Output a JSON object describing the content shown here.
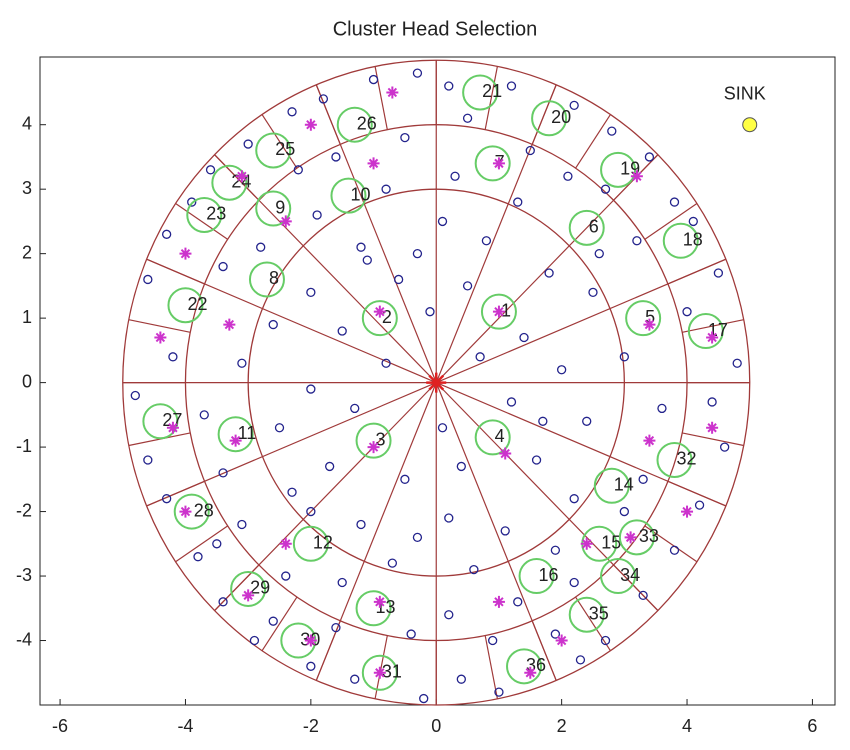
{
  "chart_data": {
    "type": "scatter",
    "title": "Cluster Head Selection",
    "xlim": [
      -6.32,
      6.36
    ],
    "ylim": [
      -5.0,
      5.05
    ],
    "xticks": [
      -6,
      -4,
      -2,
      0,
      2,
      4,
      6
    ],
    "yticks": [
      -4,
      -3,
      -2,
      -1,
      0,
      1,
      2,
      3,
      4
    ],
    "rings": [
      3,
      4,
      5
    ],
    "inner_sectors": 16,
    "outer_sectors": 32,
    "ring_color": "#a03a3a",
    "nodes": {
      "color": "#23238c",
      "x": [
        -0.3,
        0.2,
        -1.0,
        1.2,
        2.2,
        -1.8,
        -2.3,
        2.8,
        -3.0,
        3.4,
        -3.6,
        0.5,
        -0.5,
        1.5,
        -1.6,
        2.1,
        -2.2,
        3.8,
        -3.9,
        4.1,
        -4.3,
        0.3,
        -0.8,
        1.3,
        -1.9,
        2.6,
        -2.8,
        3.2,
        -3.4,
        4.5,
        -4.6,
        0.1,
        -0.3,
        0.8,
        -1.2,
        1.8,
        -2.0,
        2.5,
        -2.6,
        3.0,
        -3.1,
        4.0,
        -4.2,
        4.8,
        -4.8,
        0.5,
        -0.6,
        1.4,
        -1.5,
        2.0,
        -2.0,
        0.7,
        -0.8,
        1.2,
        -1.3,
        2.4,
        -2.5,
        3.6,
        -3.7,
        4.6,
        -4.6,
        0.4,
        -0.5,
        1.6,
        -1.7,
        2.2,
        -2.3,
        3.3,
        -3.4,
        4.2,
        -4.3,
        0.2,
        -0.3,
        1.1,
        -1.2,
        1.9,
        -2.0,
        3.0,
        -3.1,
        3.8,
        -3.8,
        0.6,
        -0.7,
        1.3,
        -1.5,
        2.2,
        -2.4,
        3.3,
        -3.4,
        0.2,
        -0.4,
        0.9,
        -1.6,
        1.9,
        -2.6,
        2.7,
        -2.9,
        0.4,
        -0.2,
        1.0,
        -1.3,
        2.3,
        -2.0,
        -0.1,
        0.1,
        2.7,
        -3.5,
        4.4,
        -1.1,
        1.7
      ],
      "y": [
        4.8,
        4.6,
        4.7,
        4.6,
        4.3,
        4.4,
        4.2,
        3.9,
        3.7,
        3.5,
        3.3,
        4.1,
        3.8,
        3.6,
        3.5,
        3.2,
        3.3,
        2.8,
        2.8,
        2.5,
        2.3,
        3.2,
        3.0,
        2.8,
        2.6,
        2.0,
        2.1,
        2.2,
        1.8,
        1.7,
        1.6,
        2.5,
        2.0,
        2.2,
        2.1,
        1.7,
        1.4,
        1.4,
        0.9,
        0.4,
        0.3,
        1.1,
        0.4,
        0.3,
        -0.2,
        1.5,
        1.6,
        0.7,
        0.8,
        0.2,
        -0.1,
        0.4,
        0.3,
        -0.3,
        -0.4,
        -0.6,
        -0.7,
        -0.4,
        -0.5,
        -1.0,
        -1.2,
        -1.3,
        -1.5,
        -1.2,
        -1.3,
        -1.8,
        -1.7,
        -1.5,
        -1.4,
        -1.9,
        -1.8,
        -2.1,
        -2.4,
        -2.3,
        -2.2,
        -2.6,
        -2.0,
        -2.0,
        -2.2,
        -2.6,
        -2.7,
        -2.9,
        -2.8,
        -3.4,
        -3.1,
        -3.1,
        -3.0,
        -3.3,
        -3.4,
        -3.6,
        -3.9,
        -4.0,
        -3.8,
        -3.9,
        -3.7,
        -4.0,
        -4.0,
        -4.6,
        -4.9,
        -4.8,
        -4.6,
        -4.3,
        -4.4,
        1.1,
        -0.7,
        3.0,
        -2.5,
        -0.3,
        1.9,
        -0.6
      ]
    },
    "cluster_heads": {
      "color": "#66cc66",
      "labels": [
        "21",
        "20",
        "26",
        "25",
        "7",
        "19",
        "24",
        "10",
        "23",
        "9",
        "6",
        "18",
        "8",
        "22",
        "2",
        "1",
        "5",
        "17",
        "27",
        "11",
        "3",
        "4",
        "32",
        "14",
        "28",
        "12",
        "15",
        "33",
        "16",
        "29",
        "34",
        "35",
        "13",
        "30",
        "36",
        "31"
      ],
      "x": [
        0.7,
        1.8,
        -1.3,
        -2.6,
        0.9,
        2.9,
        -3.3,
        -1.4,
        -3.7,
        -2.6,
        2.4,
        3.9,
        -2.7,
        -4.0,
        -0.9,
        1.0,
        3.3,
        4.3,
        -4.4,
        -3.2,
        -1.0,
        0.9,
        3.8,
        2.8,
        -3.9,
        -2.0,
        2.6,
        3.2,
        1.6,
        -3.0,
        2.9,
        2.4,
        -1.0,
        -2.2,
        1.4,
        -0.9
      ],
      "y": [
        4.5,
        4.1,
        4.0,
        3.6,
        3.4,
        3.3,
        3.1,
        2.9,
        2.6,
        2.7,
        2.4,
        2.2,
        1.6,
        1.2,
        1.0,
        1.1,
        1.0,
        0.8,
        -0.6,
        -0.8,
        -0.9,
        -0.85,
        -1.2,
        -1.6,
        -2.0,
        -2.5,
        -2.5,
        -2.4,
        -3.0,
        -3.2,
        -3.0,
        -3.6,
        -3.5,
        -4.0,
        -4.4,
        -4.5
      ]
    },
    "stars": {
      "color": "#cc33cc",
      "x": [
        -0.7,
        1.0,
        3.2,
        -2.0,
        -1.0,
        -3.1,
        -2.4,
        -4.0,
        -4.4,
        -3.3,
        4.4,
        3.4,
        -0.9,
        1.0,
        4.4,
        3.4,
        -1.0,
        1.1,
        -4.2,
        -3.2,
        -4.0,
        -2.4,
        4.0,
        2.4,
        -2.0,
        -0.9,
        1.0,
        2.0,
        -3.0,
        1.5,
        3.1,
        -0.9
      ],
      "y": [
        4.5,
        3.4,
        3.2,
        4.0,
        3.4,
        3.2,
        2.5,
        2.0,
        0.7,
        0.9,
        0.7,
        0.9,
        1.1,
        1.1,
        -0.7,
        -0.9,
        -1.0,
        -1.1,
        -0.7,
        -0.9,
        -2.0,
        -2.5,
        -2.0,
        -2.5,
        -4.0,
        -3.4,
        -3.4,
        -4.0,
        -3.3,
        -4.5,
        -2.4,
        -4.5
      ]
    },
    "sink": {
      "label": "SINK",
      "x": 5,
      "y": 4,
      "color": "#ffff44"
    }
  }
}
